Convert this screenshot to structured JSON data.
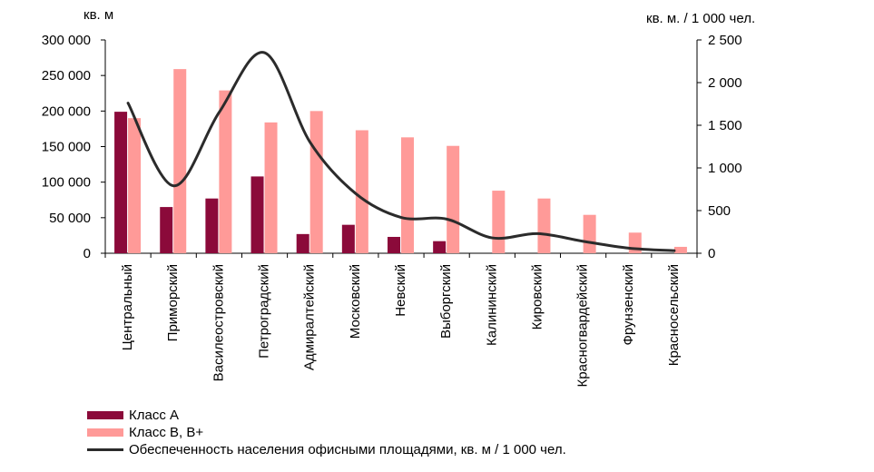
{
  "chart_data": {
    "type": "bar",
    "categories": [
      "Центральный",
      "Приморский",
      "Василеостровский",
      "Петроградский",
      "Адмиралтейский",
      "Московский",
      "Невский",
      "Выборгский",
      "Калининский",
      "Кировский",
      "Красногвардейский",
      "Фрунзенский",
      "Красносельский"
    ],
    "y_left_label": "кв. м",
    "y_right_label": "кв. м. / 1 000 чел.",
    "y_left_lim": [
      0,
      300000
    ],
    "y_left_ticks": [
      0,
      50000,
      100000,
      150000,
      200000,
      250000,
      300000
    ],
    "y_left_tick_labels": [
      "0",
      "50 000",
      "100 000",
      "150 000",
      "200 000",
      "250 000",
      "300 000"
    ],
    "y_right_lim": [
      0,
      2500
    ],
    "y_right_ticks": [
      0,
      500,
      1000,
      1500,
      2000,
      2500
    ],
    "y_right_tick_labels": [
      "0",
      "500",
      "1 000",
      "1 500",
      "2 000",
      "2 500"
    ],
    "grid": false,
    "legend_position": "bottom-left",
    "series": [
      {
        "name": "Класс А",
        "type": "bar",
        "axis": "left",
        "color": "#8B0A3A",
        "values": [
          199000,
          65000,
          77000,
          108000,
          27000,
          40000,
          23000,
          17000,
          0,
          0,
          0,
          0,
          0
        ]
      },
      {
        "name": "Класс В, В+",
        "type": "bar",
        "axis": "left",
        "color": "#FF9A98",
        "values": [
          190000,
          259000,
          229000,
          184000,
          200000,
          173000,
          163000,
          151000,
          88000,
          77000,
          54000,
          29000,
          9000
        ]
      },
      {
        "name": "Обеспеченность населения офисными площадями, кв. м / 1 000 чел.",
        "type": "line",
        "axis": "right",
        "color": "#2B2B2B",
        "values": [
          1760,
          790,
          1650,
          2350,
          1300,
          700,
          420,
          400,
          180,
          230,
          140,
          60,
          30
        ]
      }
    ]
  }
}
